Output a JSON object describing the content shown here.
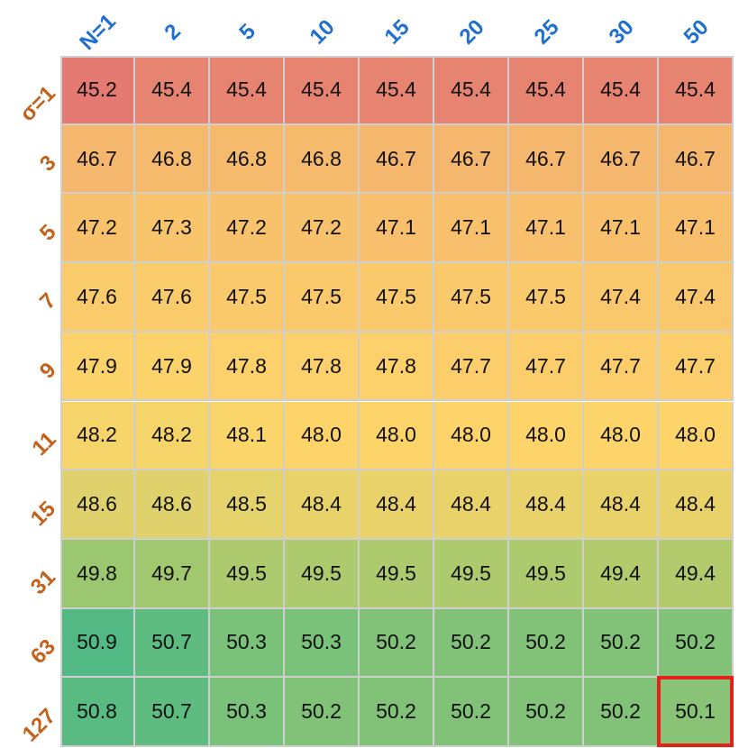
{
  "chart_data": {
    "type": "heatmap",
    "x_label_prefix": "N=",
    "y_label_prefix": "σ=",
    "x_categories": [
      "N=1",
      "2",
      "5",
      "10",
      "15",
      "20",
      "25",
      "30",
      "50"
    ],
    "y_categories": [
      "σ=1",
      "3",
      "5",
      "7",
      "9",
      "11",
      "15",
      "31",
      "63",
      "127"
    ],
    "values": [
      [
        45.2,
        45.4,
        45.4,
        45.4,
        45.4,
        45.4,
        45.4,
        45.4,
        45.4
      ],
      [
        46.7,
        46.8,
        46.8,
        46.8,
        46.7,
        46.7,
        46.7,
        46.7,
        46.7
      ],
      [
        47.2,
        47.3,
        47.2,
        47.2,
        47.1,
        47.1,
        47.1,
        47.1,
        47.1
      ],
      [
        47.6,
        47.6,
        47.5,
        47.5,
        47.5,
        47.5,
        47.5,
        47.4,
        47.4
      ],
      [
        47.9,
        47.9,
        47.8,
        47.8,
        47.8,
        47.7,
        47.7,
        47.7,
        47.7
      ],
      [
        48.2,
        48.2,
        48.1,
        48.0,
        48.0,
        48.0,
        48.0,
        48.0,
        48.0
      ],
      [
        48.6,
        48.6,
        48.5,
        48.4,
        48.4,
        48.4,
        48.4,
        48.4,
        48.4
      ],
      [
        49.8,
        49.7,
        49.5,
        49.5,
        49.5,
        49.5,
        49.5,
        49.4,
        49.4
      ],
      [
        50.9,
        50.7,
        50.3,
        50.3,
        50.2,
        50.2,
        50.2,
        50.2,
        50.2
      ],
      [
        50.8,
        50.7,
        50.3,
        50.2,
        50.2,
        50.2,
        50.2,
        50.2,
        50.1
      ]
    ],
    "highlighted_cell": {
      "row": 9,
      "col": 8,
      "color": "#e32219"
    },
    "colormap": {
      "low": "#e47a72",
      "mid_low": "#f4b26e",
      "mid": "#fdd56a",
      "mid_high": "#a6c96e",
      "high": "#52b984"
    },
    "x_label_color": "#1f6fd1",
    "y_label_color": "#c2621a",
    "grid": true,
    "legend": "none"
  }
}
